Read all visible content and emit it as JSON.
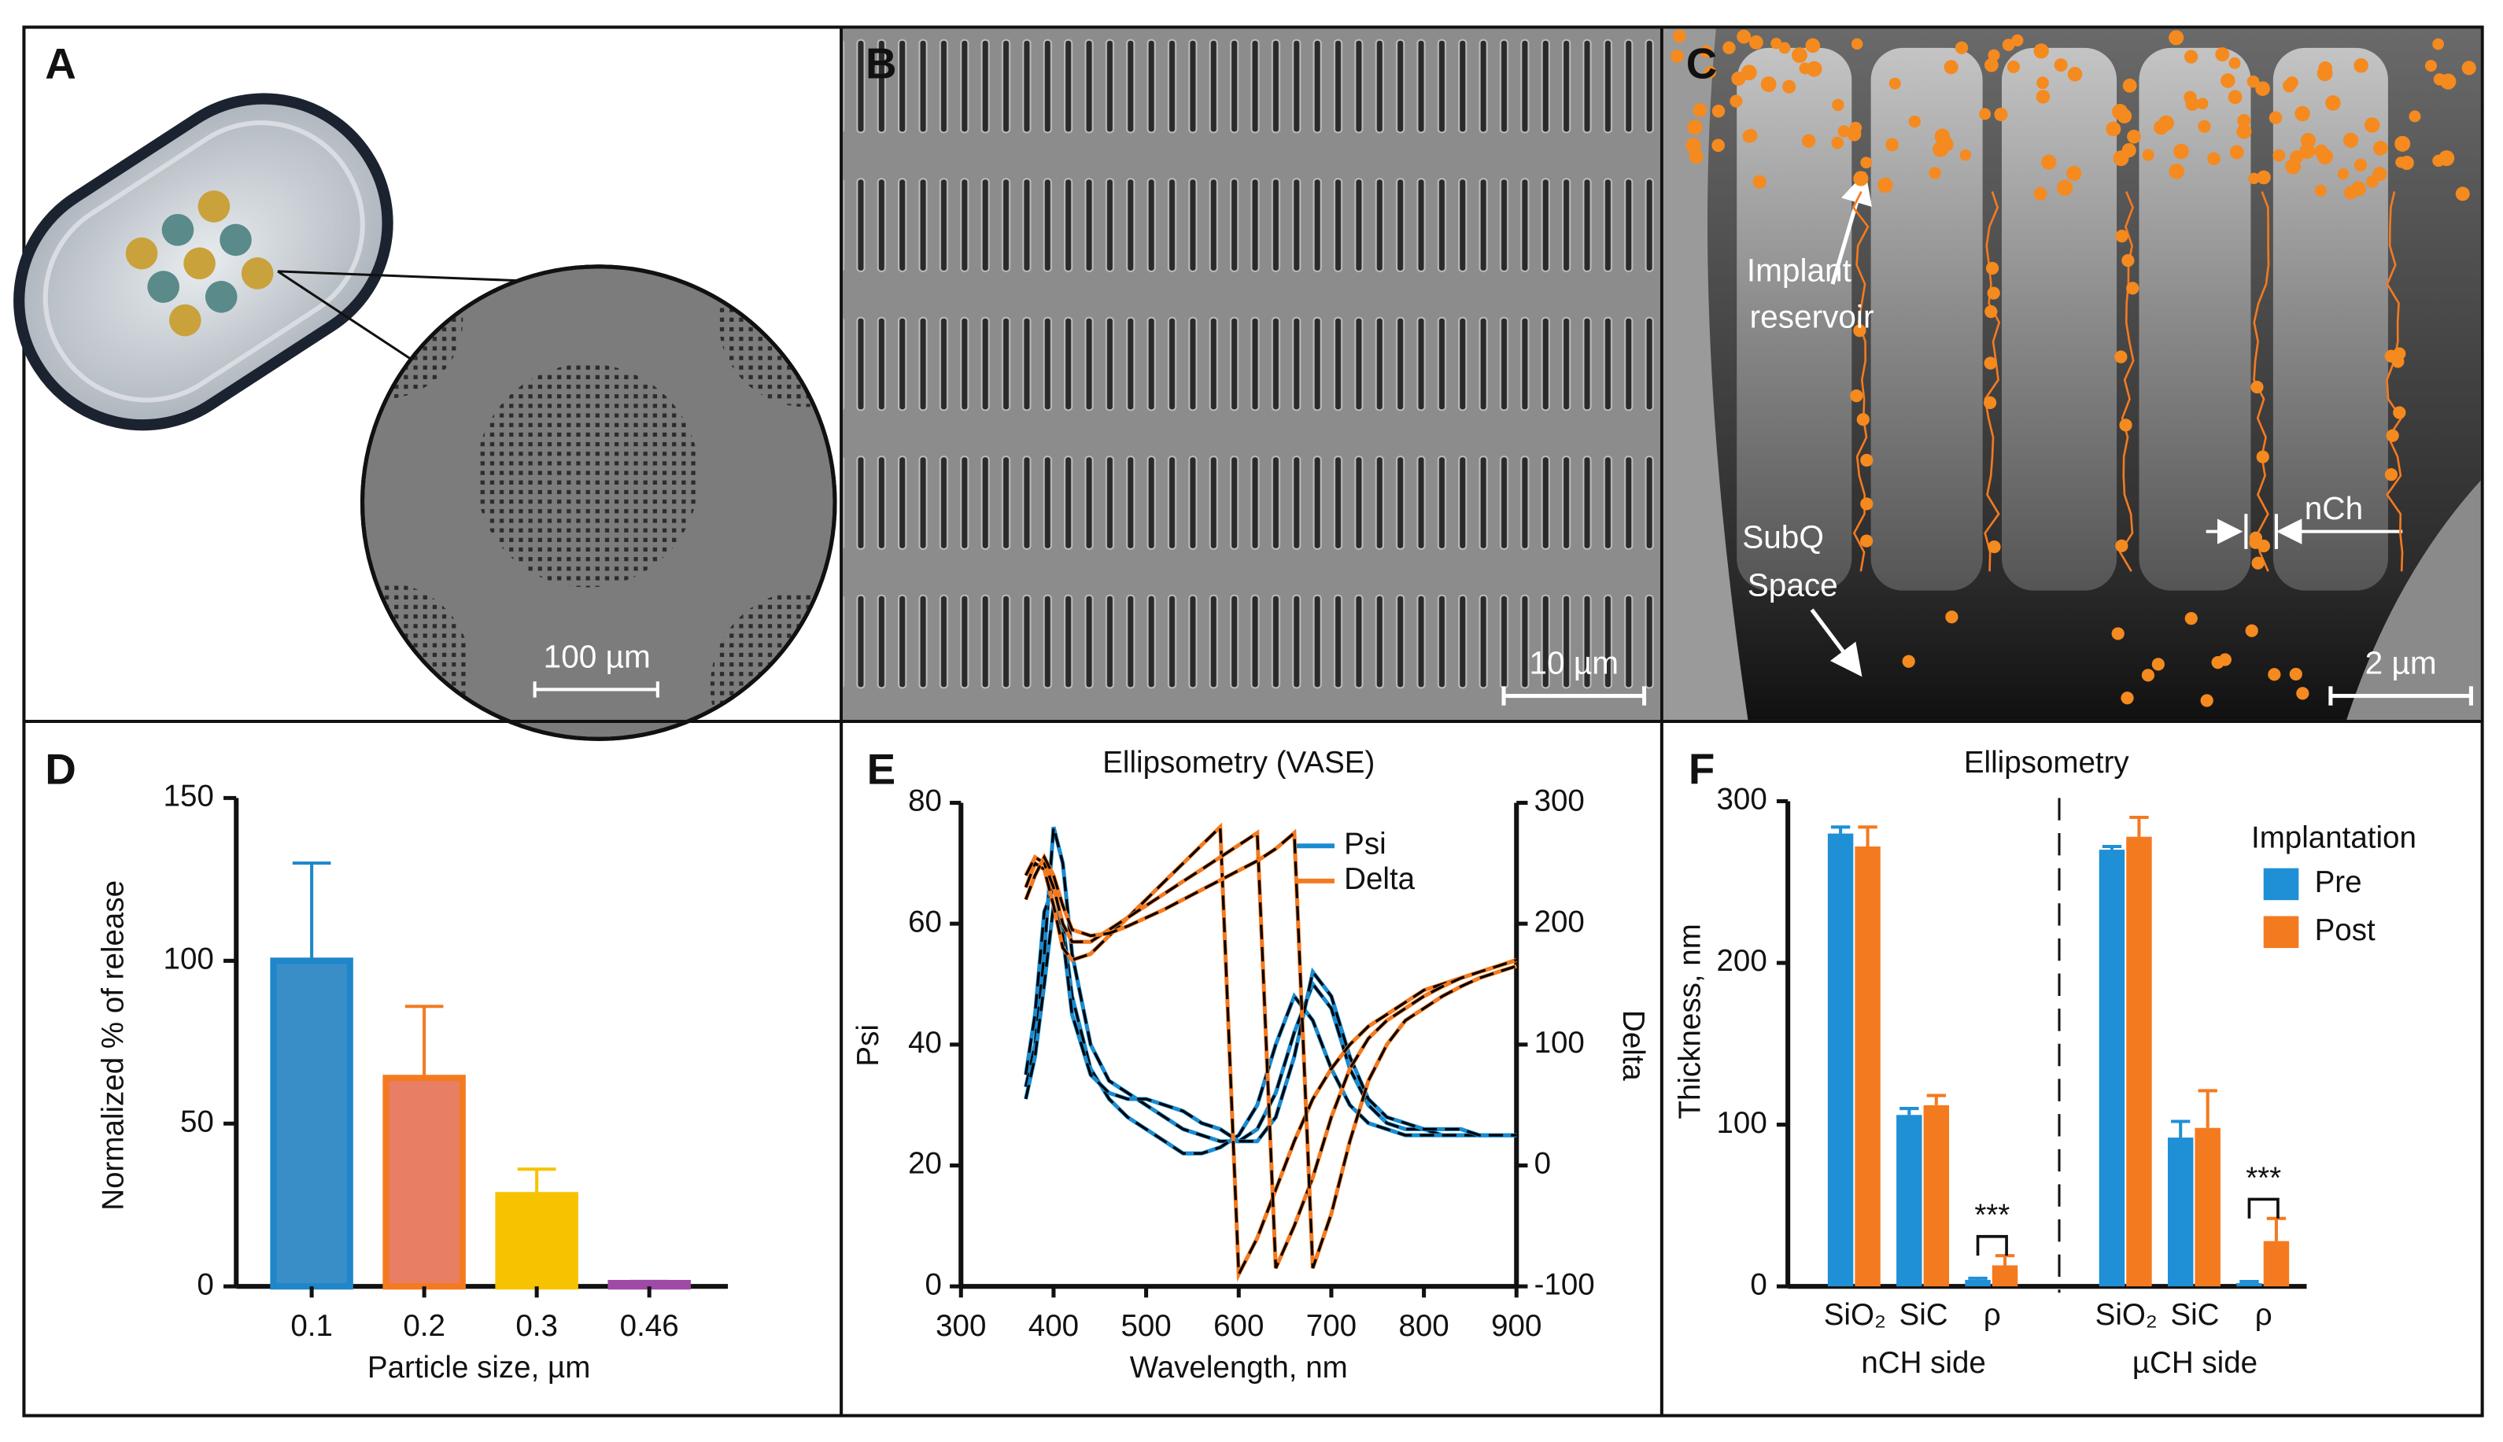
{
  "panels": {
    "labels": [
      "A",
      "B",
      "C",
      "D",
      "E",
      "F"
    ],
    "a_scale_bar": "100 µm",
    "b_scale_bar": "10 µm",
    "c_scale_bar": "2 µm",
    "c_reservoir": [
      "Implant",
      "reservoir"
    ],
    "c_subq": [
      "SubQ",
      "Space"
    ],
    "c_channel": "nCh"
  },
  "chart_data": [
    {
      "type": "bar",
      "categories": [
        "0.1",
        "0.2",
        "0.3",
        "0.46"
      ],
      "values": [
        100,
        64,
        28,
        1
      ],
      "errors": [
        30,
        22,
        8,
        0.5
      ],
      "colors": [
        "#3a8ec8",
        "#e87e63",
        "#f7c300",
        "#a04aa8"
      ],
      "edge_colors": [
        "#1f87c9",
        "#f47a20",
        "#f7c300",
        "#a04aa8"
      ],
      "ylim": [
        0,
        150
      ],
      "yticks": [
        0,
        50,
        100,
        150
      ],
      "ylabel": "Normalized % of release",
      "xlabel": "Particle size, µm"
    },
    {
      "type": "line",
      "title": "Ellipsometry (VASE)",
      "x": [
        370,
        380,
        390,
        400,
        410,
        420,
        440,
        460,
        480,
        500,
        520,
        540,
        560,
        580,
        600,
        620,
        640,
        660,
        680,
        700,
        720,
        740,
        760,
        780,
        800,
        820,
        840,
        860,
        880,
        900
      ],
      "xlim": [
        300,
        900
      ],
      "xticks": [
        300,
        400,
        500,
        600,
        700,
        800,
        900
      ],
      "ylim": [
        0,
        80
      ],
      "yticks": [
        0,
        20,
        40,
        60,
        80
      ],
      "y2lim": [
        -100,
        300
      ],
      "y2ticks": [
        -100,
        0,
        100,
        200,
        300
      ],
      "ylabel": "Psi",
      "y2label": "Delta",
      "xlabel": "Wavelength, nm",
      "fit_color": "#000000",
      "series": [
        {
          "name": "Psi",
          "color": "#1a8bd0",
          "values": [
            [
              33,
              40,
              55,
              76,
              70,
              55,
              40,
              34,
              32,
              30,
              28,
              26,
              25,
              24,
              24,
              26,
              32,
              42,
              50,
              46,
              36,
              30,
              27,
              26,
              26,
              25,
              25,
              25,
              25,
              25
            ],
            [
              35,
              45,
              62,
              66,
              60,
              48,
              36,
              31,
              28,
              26,
              24,
              22,
              22,
              23,
              25,
              30,
              40,
              48,
              44,
              36,
              30,
              27,
              26,
              25,
              25,
              25,
              25,
              25,
              25,
              25
            ],
            [
              31,
              38,
              50,
              63,
              58,
              45,
              35,
              32,
              31,
              31,
              30,
              29,
              27,
              26,
              24,
              24,
              28,
              38,
              52,
              48,
              38,
              31,
              28,
              27,
              26,
              26,
              26,
              25,
              25,
              25
            ]
          ]
        },
        {
          "name": "Delta",
          "color": "#f47a20",
          "axis": "y2",
          "values": [
            [
              230,
              250,
              245,
              215,
              180,
              170,
              175,
              190,
              205,
              220,
              235,
              250,
              265,
              280,
              -90,
              -60,
              -20,
              20,
              55,
              80,
              100,
              115,
              125,
              135,
              145,
              150,
              155,
              160,
              165,
              170
            ],
            [
              240,
              255,
              250,
              230,
              200,
              185,
              185,
              195,
              205,
              215,
              225,
              235,
              245,
              255,
              265,
              275,
              -85,
              -50,
              -10,
              40,
              80,
              105,
              120,
              130,
              140,
              148,
              155,
              160,
              165,
              170
            ],
            [
              220,
              240,
              255,
              240,
              215,
              195,
              190,
              192,
              198,
              205,
              212,
              220,
              228,
              236,
              244,
              252,
              262,
              275,
              -85,
              -40,
              20,
              70,
              100,
              120,
              130,
              140,
              148,
              155,
              160,
              165
            ]
          ]
        }
      ]
    },
    {
      "type": "grouped_bar",
      "title": "Ellipsometry",
      "categories": [
        "SiO₂",
        "SiC",
        "ρ",
        "SiO₂",
        "SiC",
        "ρ"
      ],
      "groups": [
        "nCH side",
        "µCH side"
      ],
      "ylim": [
        0,
        300
      ],
      "yticks": [
        0,
        100,
        200,
        300
      ],
      "ylabel": "Thickness, nm",
      "legend_title": "Implantation",
      "annotations": [
        "***",
        "***"
      ],
      "series": [
        {
          "name": "Pre",
          "color": "#1f8fd6",
          "values": [
            280,
            106,
            4,
            270,
            92,
            2
          ],
          "errors": [
            4,
            4,
            1,
            2,
            10,
            1
          ]
        },
        {
          "name": "Post",
          "color": "#f47a20",
          "values": [
            272,
            112,
            13,
            278,
            98,
            28
          ],
          "errors": [
            12,
            6,
            6,
            12,
            23,
            14
          ]
        }
      ]
    }
  ]
}
